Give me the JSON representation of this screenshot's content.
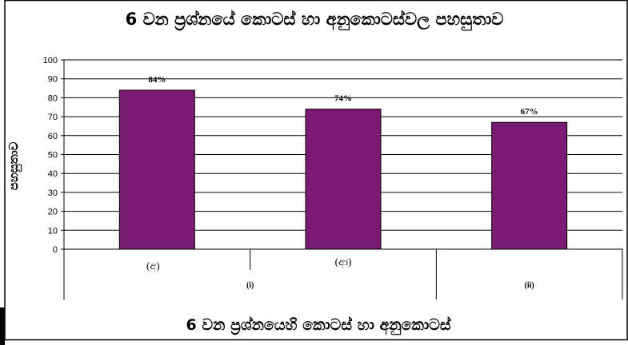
{
  "chart_data": {
    "type": "bar",
    "title": "6 වන ප්‍රශ්නයේ කොටස් හා අනුකොටස්වල පහසුතාව",
    "xlabel": "6 වන ප්‍රශ්නයෙහි කොටස් හා අනුකොටස්",
    "ylabel": "පහසුතාව",
    "ylim": [
      0,
      100
    ],
    "yticks": [
      0,
      10,
      20,
      30,
      40,
      50,
      60,
      70,
      80,
      90,
      100
    ],
    "categories": [
      "(අ)",
      "(ආ)",
      ""
    ],
    "groups": [
      {
        "label": "(i)",
        "span": [
          0,
          1
        ]
      },
      {
        "label": "(ii)",
        "span": [
          2,
          2
        ]
      }
    ],
    "values": [
      84,
      74,
      67
    ],
    "data_labels": [
      "84%",
      "74%",
      "67%"
    ],
    "bar_color": "#7a1a72",
    "grid": true,
    "legend": "none"
  }
}
